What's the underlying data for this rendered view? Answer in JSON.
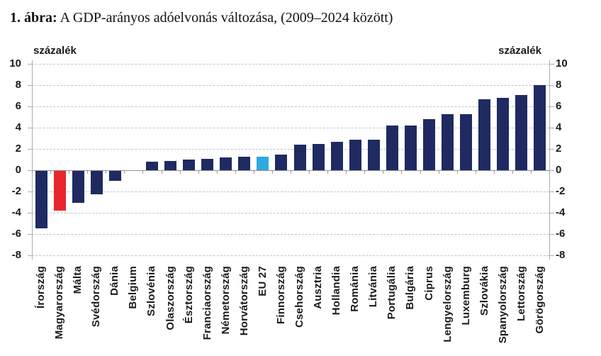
{
  "title": {
    "prefix": "1. ábra:",
    "rest": " A GDP-arányos adóelvonás változása, (2009–2024 között)"
  },
  "axis": {
    "unit_left": "százalék",
    "unit_right": "százalék"
  },
  "colors": {
    "bar_default": "#1e2a61",
    "bar_highlight_red": "#e8262b",
    "bar_highlight_blue": "#2fa9e1",
    "grid": "#c3c3c3",
    "axis_line": "#adadad",
    "zero_line": "#8f8f8f",
    "text": "#1a1a1a"
  },
  "chart_data": {
    "type": "bar",
    "title": "A GDP-arányos adóelvonás változása, (2009–2024 között)",
    "xlabel": "",
    "ylabel": "százalék",
    "ylim": [
      -8,
      10
    ],
    "yticks": [
      10,
      8,
      6,
      4,
      2,
      0,
      -2,
      -4,
      -6,
      -8
    ],
    "grid": "horizontal-dashed",
    "legend": "none",
    "categories": [
      "Írország",
      "Magyarország",
      "Málta",
      "Svédország",
      "Dánia",
      "Belgium",
      "Szlovénia",
      "Olaszország",
      "Észtország",
      "Franciaország",
      "Németország",
      "Horvátország",
      "EU 27",
      "Finnország",
      "Csehország",
      "Ausztria",
      "Hollandia",
      "Románia",
      "Litvánia",
      "Portugália",
      "Bulgária",
      "Ciprus",
      "Lengyelország",
      "Luxemburg",
      "Szlovákia",
      "Spanyolország",
      "Lettország",
      "Görögország"
    ],
    "values": [
      -5.4,
      -3.7,
      -3.0,
      -2.2,
      -0.9,
      0.0,
      0.8,
      0.9,
      1.0,
      1.1,
      1.2,
      1.3,
      1.3,
      1.5,
      2.4,
      2.5,
      2.7,
      2.9,
      2.9,
      4.2,
      4.2,
      4.8,
      5.3,
      5.3,
      6.7,
      6.8,
      7.1,
      8.0
    ],
    "highlights": [
      {
        "category": "Magyarország",
        "color_role": "bar_highlight_red"
      },
      {
        "category": "EU 27",
        "color_role": "bar_highlight_blue"
      }
    ]
  }
}
